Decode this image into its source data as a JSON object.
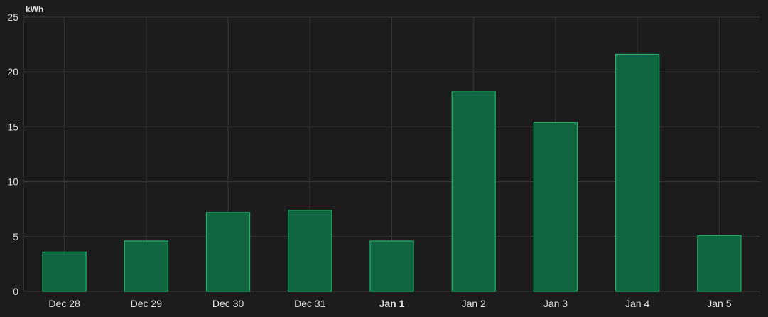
{
  "chart_data": {
    "type": "bar",
    "ylabel": "kWh",
    "categories": [
      "Dec 28",
      "Dec 29",
      "Dec 30",
      "Dec 31",
      "Jan 1",
      "Jan 2",
      "Jan 3",
      "Jan 4",
      "Jan 5"
    ],
    "bold_categories": [
      "Jan 1"
    ],
    "values": [
      3.6,
      4.6,
      7.2,
      7.4,
      4.6,
      18.2,
      15.4,
      21.6,
      5.1
    ],
    "ylim": [
      0,
      25
    ],
    "yticks": [
      0,
      5,
      10,
      15,
      20,
      25
    ],
    "grid": true,
    "colors": {
      "background": "#1c1c1c",
      "bar_fill": "#0f6640",
      "bar_stroke": "#1fb46a",
      "grid": "#383838",
      "text": "#e1e1e1"
    }
  }
}
